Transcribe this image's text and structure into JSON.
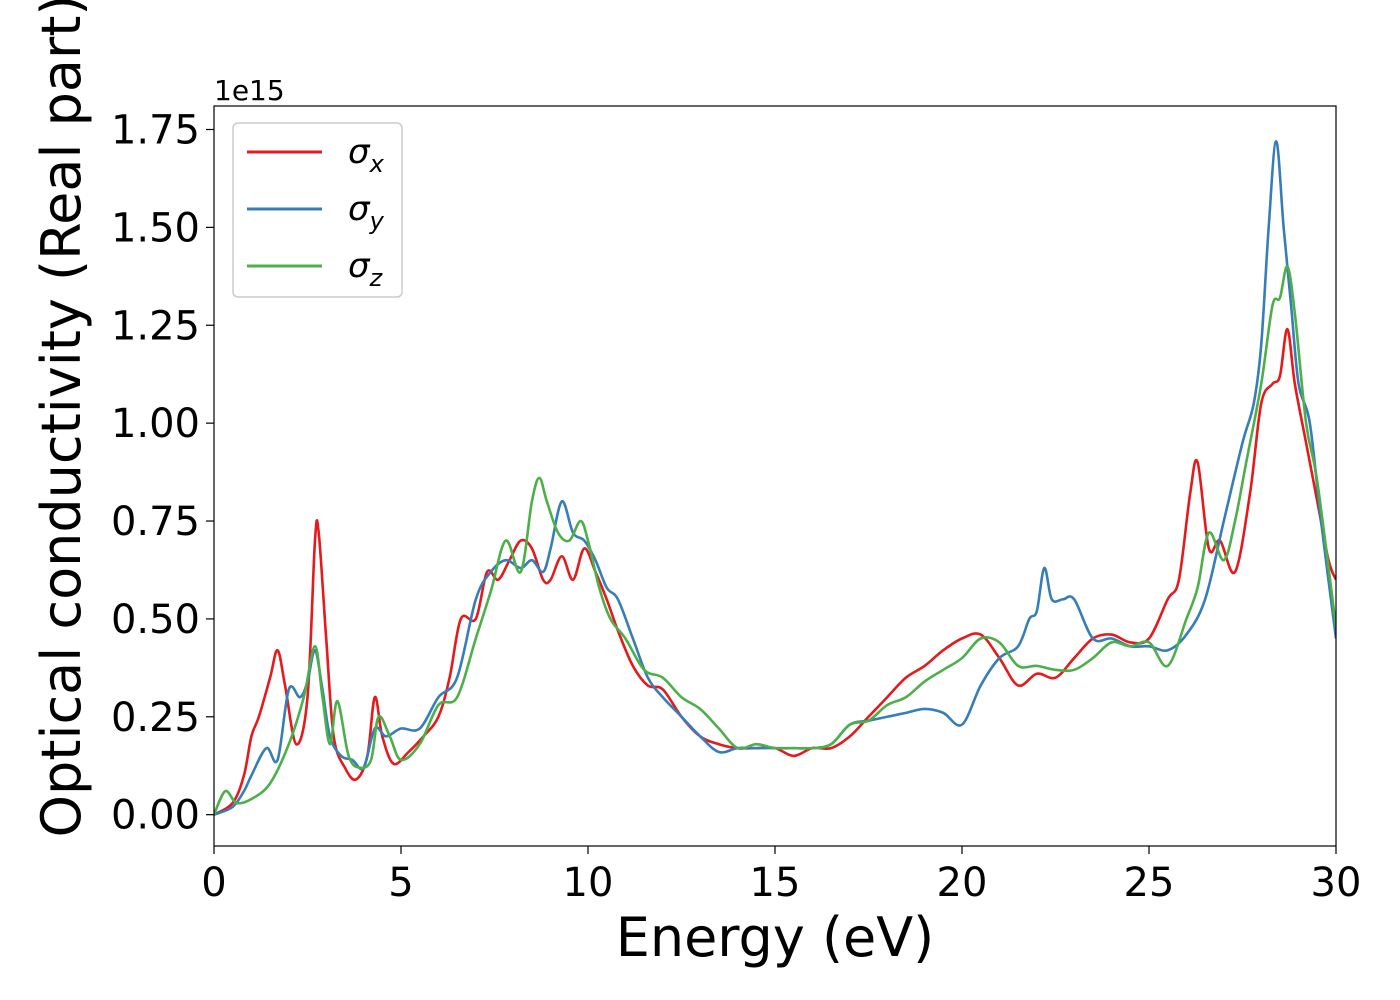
{
  "chart_data": {
    "type": "line",
    "xlabel": "Energy (eV)",
    "ylabel": "Optical conductivity (Real part)",
    "y_offset_label": "1e15",
    "xlim": [
      0,
      30
    ],
    "ylim": [
      -0.08,
      1.81
    ],
    "x_ticks": [
      0,
      5,
      10,
      15,
      20,
      25,
      30
    ],
    "x_tick_labels": [
      "0",
      "5",
      "10",
      "15",
      "20",
      "25",
      "30"
    ],
    "y_ticks": [
      0.0,
      0.25,
      0.5,
      0.75,
      1.0,
      1.25,
      1.5,
      1.75
    ],
    "y_tick_labels": [
      "0.00",
      "0.25",
      "0.50",
      "0.75",
      "1.00",
      "1.25",
      "1.50",
      "1.75"
    ],
    "grid": false,
    "legend_position": "top-left",
    "series": [
      {
        "name": "σ_x",
        "legend_main": "σ",
        "legend_sub": "x",
        "color": "#e41a1c",
        "x": [
          0,
          0.5,
          0.8,
          1.0,
          1.2,
          1.5,
          1.7,
          1.9,
          2.2,
          2.5,
          2.7,
          2.8,
          3.0,
          3.2,
          3.5,
          3.8,
          4.1,
          4.3,
          4.5,
          4.8,
          5.2,
          5.6,
          6.0,
          6.3,
          6.6,
          7.0,
          7.3,
          7.6,
          7.9,
          8.2,
          8.5,
          8.8,
          9.0,
          9.3,
          9.6,
          9.9,
          10.2,
          10.5,
          10.8,
          11.2,
          11.6,
          12.0,
          12.5,
          13.0,
          13.5,
          14.0,
          14.5,
          15.0,
          15.5,
          16.0,
          16.5,
          17.0,
          17.5,
          18.0,
          18.5,
          19.0,
          19.5,
          20.0,
          20.5,
          21.0,
          21.5,
          22.0,
          22.5,
          23.0,
          23.5,
          24.0,
          24.5,
          25.0,
          25.5,
          25.8,
          26.1,
          26.3,
          26.6,
          26.9,
          27.3,
          27.7,
          28.0,
          28.3,
          28.5,
          28.7,
          28.9,
          29.2,
          29.5,
          29.8,
          30.0
        ],
        "y": [
          0,
          0.03,
          0.1,
          0.2,
          0.25,
          0.35,
          0.42,
          0.33,
          0.18,
          0.3,
          0.7,
          0.72,
          0.45,
          0.2,
          0.12,
          0.09,
          0.15,
          0.3,
          0.2,
          0.13,
          0.16,
          0.2,
          0.25,
          0.35,
          0.5,
          0.5,
          0.62,
          0.6,
          0.65,
          0.7,
          0.68,
          0.6,
          0.6,
          0.66,
          0.6,
          0.68,
          0.62,
          0.55,
          0.47,
          0.38,
          0.33,
          0.32,
          0.25,
          0.2,
          0.18,
          0.17,
          0.17,
          0.17,
          0.15,
          0.17,
          0.17,
          0.2,
          0.25,
          0.3,
          0.35,
          0.38,
          0.42,
          0.45,
          0.46,
          0.4,
          0.33,
          0.36,
          0.35,
          0.4,
          0.45,
          0.46,
          0.44,
          0.45,
          0.55,
          0.6,
          0.82,
          0.9,
          0.68,
          0.7,
          0.62,
          0.82,
          1.05,
          1.1,
          1.12,
          1.24,
          1.1,
          0.95,
          0.8,
          0.65,
          0.6
        ]
      },
      {
        "name": "σ_y",
        "legend_main": "σ",
        "legend_sub": "y",
        "color": "#377eb8",
        "x": [
          0,
          0.5,
          0.8,
          1.0,
          1.4,
          1.7,
          2.0,
          2.3,
          2.5,
          2.7,
          2.9,
          3.1,
          3.4,
          3.7,
          4.0,
          4.3,
          4.6,
          5.0,
          5.5,
          6.0,
          6.5,
          7.0,
          7.4,
          7.8,
          8.2,
          8.5,
          8.8,
          9.0,
          9.3,
          9.6,
          9.9,
          10.2,
          10.5,
          10.8,
          11.2,
          11.6,
          12.0,
          12.5,
          13.0,
          13.5,
          14.0,
          14.5,
          15.0,
          15.5,
          16.0,
          16.5,
          17.0,
          17.5,
          18.0,
          18.5,
          19.0,
          19.5,
          20.0,
          20.5,
          21.0,
          21.5,
          21.8,
          22.0,
          22.2,
          22.4,
          22.7,
          23.0,
          23.5,
          24.0,
          24.5,
          25.0,
          25.5,
          26.0,
          26.5,
          27.0,
          27.5,
          27.8,
          28.0,
          28.2,
          28.4,
          28.6,
          28.8,
          29.0,
          29.3,
          29.6,
          30.0
        ],
        "y": [
          0,
          0.02,
          0.06,
          0.1,
          0.17,
          0.14,
          0.32,
          0.3,
          0.34,
          0.42,
          0.32,
          0.2,
          0.15,
          0.14,
          0.12,
          0.22,
          0.2,
          0.22,
          0.22,
          0.3,
          0.35,
          0.55,
          0.62,
          0.65,
          0.63,
          0.65,
          0.62,
          0.68,
          0.8,
          0.72,
          0.7,
          0.65,
          0.58,
          0.55,
          0.45,
          0.35,
          0.3,
          0.25,
          0.2,
          0.16,
          0.17,
          0.17,
          0.17,
          0.17,
          0.17,
          0.18,
          0.23,
          0.24,
          0.25,
          0.26,
          0.27,
          0.26,
          0.23,
          0.33,
          0.4,
          0.43,
          0.5,
          0.52,
          0.63,
          0.55,
          0.55,
          0.55,
          0.45,
          0.45,
          0.43,
          0.43,
          0.42,
          0.46,
          0.55,
          0.75,
          0.95,
          1.05,
          1.2,
          1.5,
          1.72,
          1.5,
          1.3,
          1.1,
          1.0,
          0.75,
          0.45
        ]
      },
      {
        "name": "σ_z",
        "legend_main": "σ",
        "legend_sub": "z",
        "color": "#4daf4a",
        "x": [
          0,
          0.3,
          0.6,
          1.0,
          1.5,
          2.0,
          2.4,
          2.7,
          2.9,
          3.1,
          3.3,
          3.6,
          3.9,
          4.2,
          4.4,
          4.7,
          5.0,
          5.5,
          6.0,
          6.5,
          7.0,
          7.4,
          7.8,
          8.2,
          8.5,
          8.7,
          8.9,
          9.2,
          9.5,
          9.8,
          10.0,
          10.3,
          10.6,
          11.0,
          11.5,
          12.0,
          12.5,
          13.0,
          13.5,
          14.0,
          14.5,
          15.0,
          15.5,
          16.0,
          16.5,
          17.0,
          17.5,
          18.0,
          18.5,
          19.0,
          19.5,
          20.0,
          20.5,
          21.0,
          21.5,
          22.0,
          22.5,
          23.0,
          23.5,
          24.0,
          24.5,
          25.0,
          25.5,
          26.0,
          26.3,
          26.6,
          27.0,
          27.3,
          27.6,
          28.0,
          28.3,
          28.5,
          28.7,
          28.9,
          29.2,
          29.5,
          30.0
        ],
        "y": [
          0,
          0.06,
          0.03,
          0.04,
          0.08,
          0.18,
          0.3,
          0.43,
          0.3,
          0.18,
          0.29,
          0.15,
          0.12,
          0.14,
          0.25,
          0.2,
          0.14,
          0.18,
          0.28,
          0.3,
          0.45,
          0.57,
          0.7,
          0.62,
          0.8,
          0.86,
          0.8,
          0.72,
          0.7,
          0.75,
          0.7,
          0.58,
          0.5,
          0.45,
          0.37,
          0.35,
          0.3,
          0.27,
          0.22,
          0.17,
          0.18,
          0.17,
          0.17,
          0.17,
          0.18,
          0.23,
          0.24,
          0.28,
          0.3,
          0.34,
          0.37,
          0.4,
          0.45,
          0.44,
          0.38,
          0.38,
          0.37,
          0.37,
          0.4,
          0.44,
          0.43,
          0.44,
          0.38,
          0.5,
          0.58,
          0.72,
          0.65,
          0.75,
          0.9,
          1.1,
          1.3,
          1.32,
          1.4,
          1.28,
          1.0,
          0.85,
          0.48
        ]
      }
    ]
  }
}
